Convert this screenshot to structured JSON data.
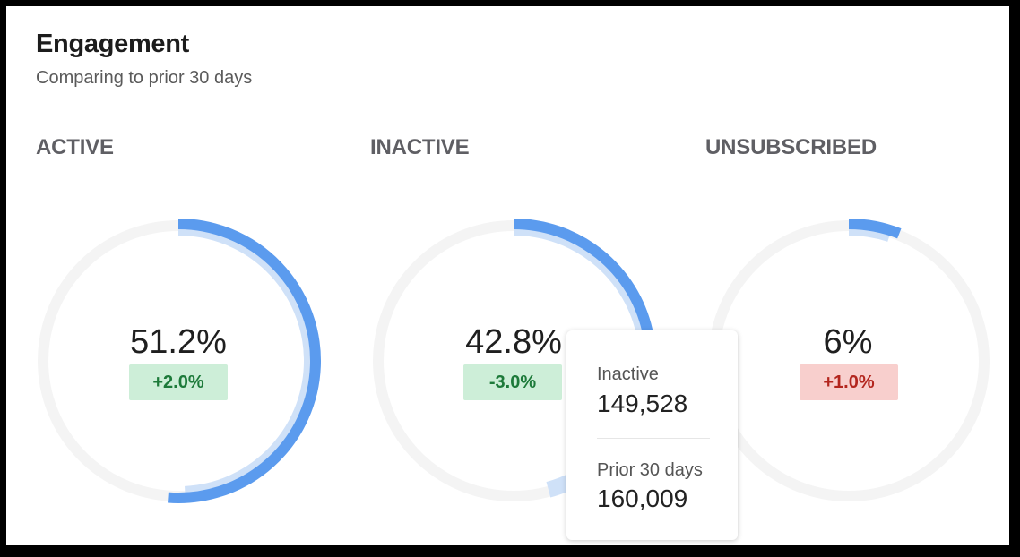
{
  "header": {
    "title": "Engagement",
    "subtitle": "Comparing to prior 30 days"
  },
  "colors": {
    "track": "#f4f4f4",
    "current": "#5b9bee",
    "prior": "#cfe1f8",
    "positive_bg": "#cdeed8",
    "positive_text": "#1d7a3a",
    "negative_bg": "#f8cfcd",
    "negative_text": "#b3261e"
  },
  "chart_data": {
    "type": "donut",
    "metrics": [
      {
        "label": "ACTIVE",
        "value_label": "51.2%",
        "current_pct": 51.2,
        "prior_pct": 49.2,
        "change": "+2.0%",
        "change_tone": "positive"
      },
      {
        "label": "INACTIVE",
        "value_label": "42.8%",
        "current_pct": 42.8,
        "prior_pct": 45.8,
        "change": "-3.0%",
        "change_tone": "positive"
      },
      {
        "label": "UNSUBSCRIBED",
        "value_label": "6%",
        "current_pct": 6.0,
        "prior_pct": 5.0,
        "change": "+1.0%",
        "change_tone": "negative"
      }
    ]
  },
  "tooltip": {
    "current_label": "Inactive",
    "current_value": "149,528",
    "prior_label": "Prior 30 days",
    "prior_value": "160,009"
  }
}
